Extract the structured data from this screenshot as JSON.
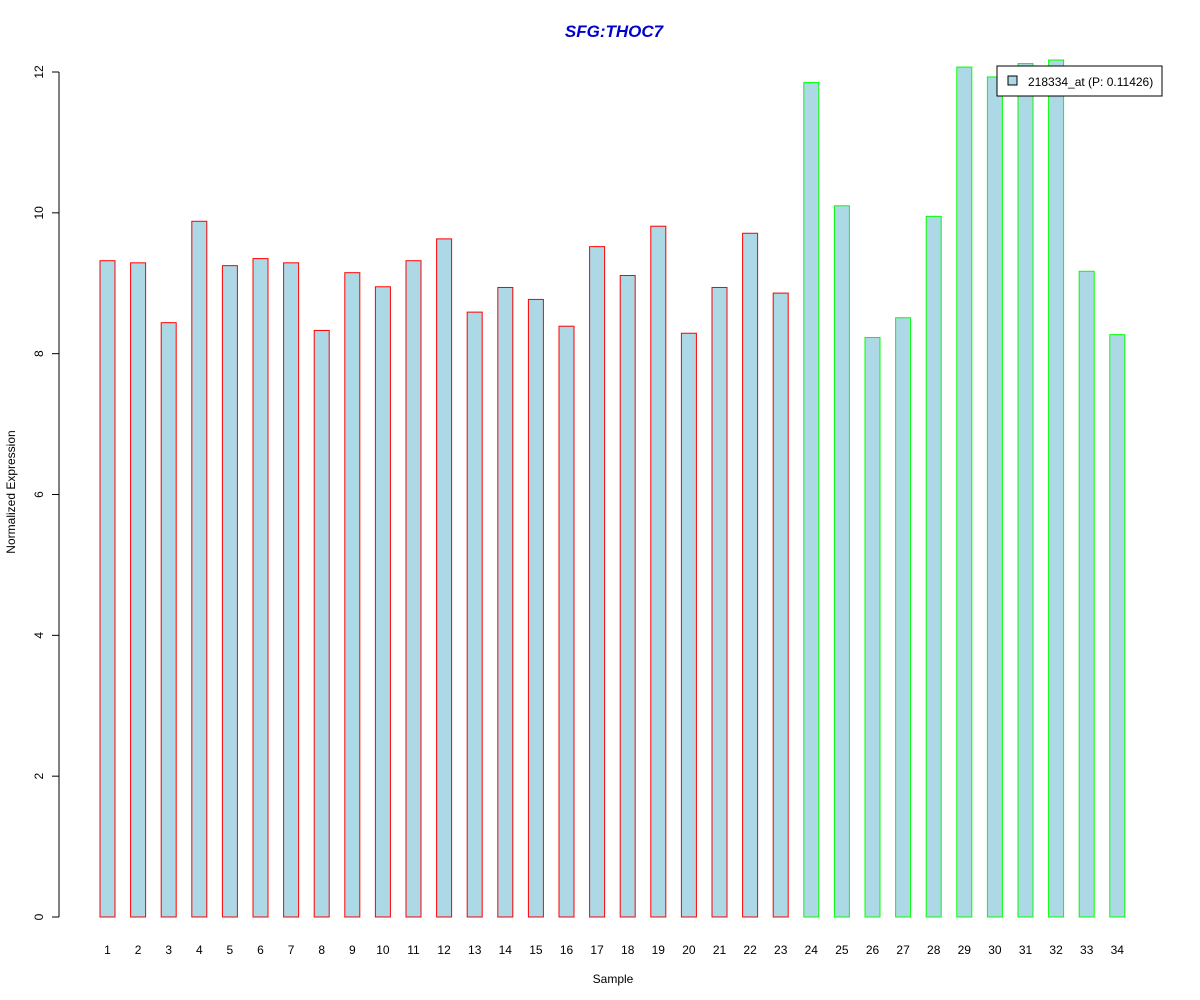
{
  "chart_data": {
    "type": "bar",
    "title": "SFG:THOC7",
    "xlabel": "Sample",
    "ylabel": "Normalized Expression",
    "ylim": [
      0,
      12
    ],
    "yticks": [
      0,
      2,
      4,
      6,
      8,
      10,
      12
    ],
    "categories": [
      "1",
      "2",
      "3",
      "4",
      "5",
      "6",
      "7",
      "8",
      "9",
      "10",
      "11",
      "12",
      "13",
      "14",
      "15",
      "16",
      "17",
      "18",
      "19",
      "20",
      "21",
      "22",
      "23",
      "24",
      "25",
      "26",
      "27",
      "28",
      "29",
      "30",
      "31",
      "32",
      "33",
      "34"
    ],
    "series": [
      {
        "name": "218334_at (P: 0.11426)",
        "values": [
          9.32,
          9.29,
          8.44,
          9.88,
          9.25,
          9.35,
          9.29,
          8.33,
          9.15,
          8.95,
          9.32,
          9.63,
          8.59,
          8.94,
          8.77,
          8.39,
          9.52,
          9.11,
          9.81,
          8.29,
          8.94,
          9.71,
          8.86,
          11.85,
          10.1,
          8.23,
          8.51,
          9.95,
          12.07,
          11.93,
          12.12,
          12.17,
          9.17,
          8.27
        ]
      }
    ],
    "bar_fill": "#add8e6",
    "group_colors": {
      "group1": "#ff0000",
      "group2": "#00ff00"
    },
    "group1_count": 23,
    "title_color": "#0000cc",
    "grid": false,
    "legend_position": "top-right"
  }
}
